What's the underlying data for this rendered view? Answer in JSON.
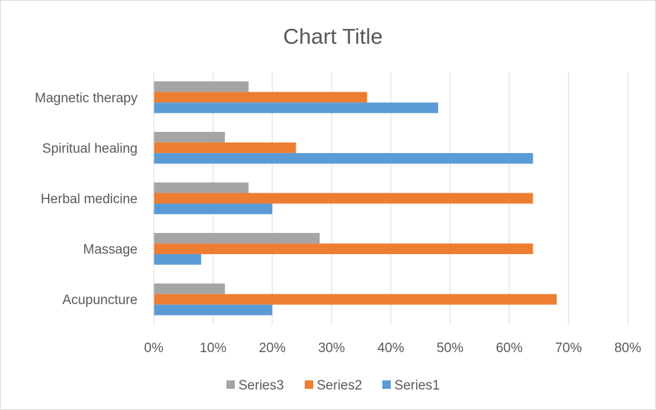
{
  "chart_data": {
    "type": "bar",
    "orientation": "horizontal",
    "title": "Chart Title",
    "categories": [
      "Acupuncture",
      "Massage",
      "Herbal medicine",
      "Spiritual healing",
      "Magnetic therapy"
    ],
    "series": [
      {
        "name": "Series1",
        "color": "#5b9bd5",
        "values": [
          20,
          8,
          20,
          64,
          48
        ]
      },
      {
        "name": "Series2",
        "color": "#ed7d31",
        "values": [
          68,
          64,
          64,
          24,
          36
        ]
      },
      {
        "name": "Series3",
        "color": "#a5a5a5",
        "values": [
          12,
          28,
          16,
          12,
          16
        ]
      }
    ],
    "xlim": [
      0,
      80
    ],
    "x_ticks": [
      "0%",
      "10%",
      "20%",
      "30%",
      "40%",
      "50%",
      "60%",
      "70%",
      "80%"
    ],
    "legend_order": [
      "Series3",
      "Series2",
      "Series1"
    ],
    "legend_position": "bottom",
    "grid": "vertical"
  }
}
